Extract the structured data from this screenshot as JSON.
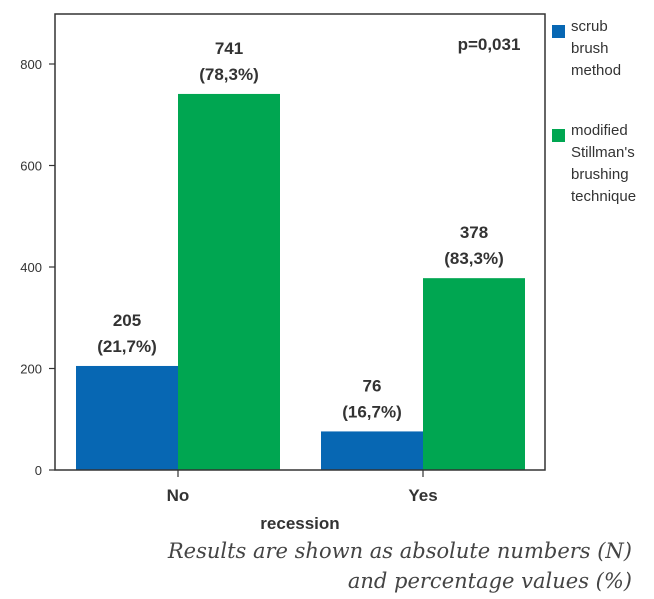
{
  "chart_data": {
    "type": "bar",
    "categories": [
      "No",
      "Yes"
    ],
    "xlabel": "recession",
    "ylabel": "",
    "ylim": [
      0,
      900
    ],
    "yticks": [
      0,
      200,
      400,
      600,
      800
    ],
    "grid": false,
    "legend_position": "right",
    "series": [
      {
        "name": "scrub brush method",
        "color": "#0767b3",
        "values": [
          205,
          76
        ],
        "labels": [
          "205",
          "76"
        ],
        "percent_labels": [
          "(21,7%)",
          "(16,7%)"
        ]
      },
      {
        "name": "modified Stillman's brushing technique",
        "color": "#00a651",
        "values": [
          741,
          378
        ],
        "labels": [
          "741",
          "378"
        ],
        "percent_labels": [
          "(78,3%)",
          "(83,3%)"
        ]
      }
    ],
    "annotation": "p=0,031"
  },
  "legend": {
    "items": [
      {
        "lines": [
          "scrub",
          "brush",
          "method"
        ],
        "color": "#0767b3"
      },
      {
        "lines": [
          "modified",
          "Stillman's",
          "brushing",
          "technique"
        ],
        "color": "#00a651"
      }
    ]
  },
  "footnote": {
    "line1": "Results are shown as absolute numbers (N)",
    "line2": "and percentage values (%)"
  }
}
